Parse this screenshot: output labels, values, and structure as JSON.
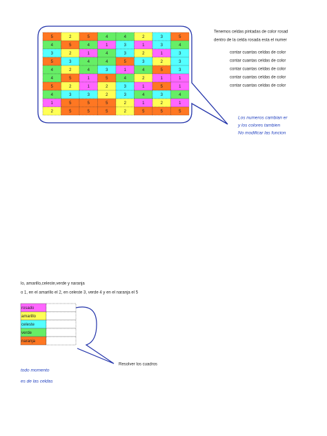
{
  "intro": {
    "line1": "Tenemos celdas pintadas de color rosad",
    "line2": "dentro de la celda rosada esta el numer"
  },
  "grid": {
    "rows": [
      [
        5,
        2,
        5,
        4,
        4,
        2,
        3,
        5
      ],
      [
        4,
        5,
        4,
        1,
        3,
        1,
        3,
        4
      ],
      [
        3,
        2,
        1,
        4,
        3,
        2,
        1,
        3
      ],
      [
        5,
        3,
        4,
        4,
        5,
        3,
        2,
        3
      ],
      [
        4,
        2,
        4,
        3,
        1,
        4,
        5,
        3
      ],
      [
        4,
        5,
        1,
        5,
        4,
        2,
        1,
        1
      ],
      [
        5,
        2,
        1,
        2,
        3,
        1,
        5,
        1
      ],
      [
        4,
        3,
        3,
        2,
        3,
        4,
        3,
        4
      ],
      [
        1,
        5,
        5,
        5,
        2,
        1,
        2,
        1
      ],
      [
        2,
        5,
        5,
        5,
        2,
        5,
        5,
        5
      ]
    ]
  },
  "instructions": [
    "contar cuantas celdas de color",
    "contar cuantas celdas de color",
    "contar cuantas celdas de color",
    "contar cuantas celdas de color",
    "contar cuantas celdas de color"
  ],
  "notes": [
    "Los numeros cambian er",
    "y los colores tambien",
    "No modificar las funcion"
  ],
  "bottom": {
    "line1": "lo, amarillo,celeste,verde y naranja",
    "line2": "o 1, en el amarillo el 2, en celeste 3, verde 4 y en el naranja el 5"
  },
  "table": {
    "rows": [
      {
        "label": "rosado",
        "color": "#ff66ff"
      },
      {
        "label": "amarillo",
        "color": "#ffff55"
      },
      {
        "label": "celeste",
        "color": "#55ffff"
      },
      {
        "label": "verde",
        "color": "#66ee66"
      },
      {
        "label": "naranja",
        "color": "#ff7722"
      }
    ]
  },
  "footer": {
    "action": "Resolver los cuadros",
    "note1": "todo momento",
    "note2": "es de las celdas"
  }
}
